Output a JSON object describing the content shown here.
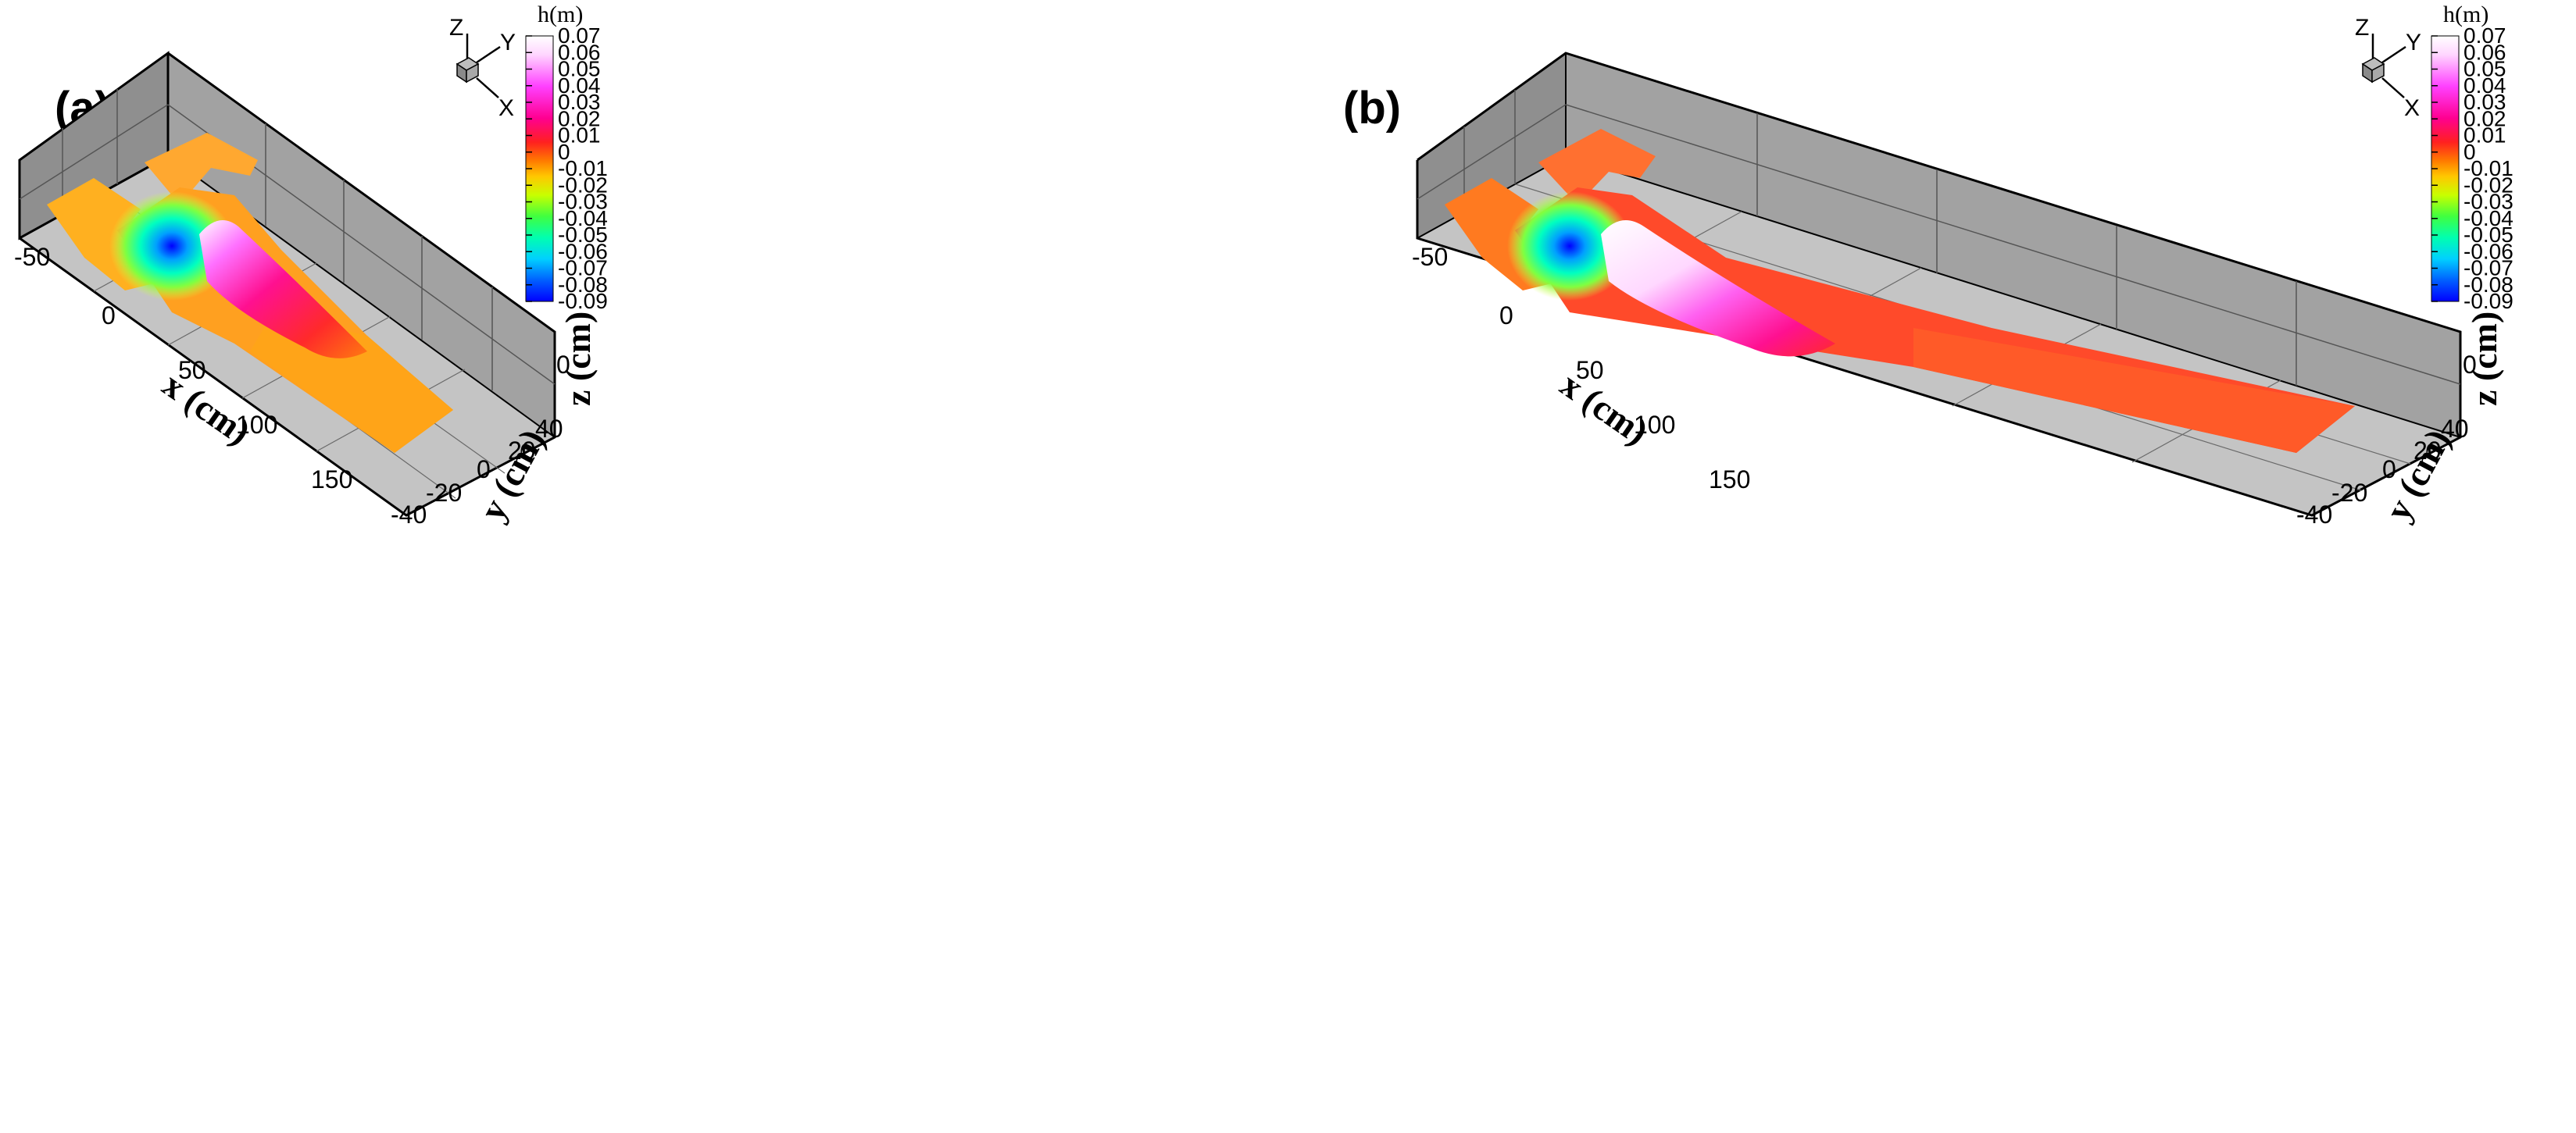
{
  "chart_data": [
    {
      "type": "surface3d",
      "panel_label": "(a)",
      "xlabel": "x (cm)",
      "ylabel": "y (cm)",
      "zlabel": "z (cm)",
      "x_ticks": [
        "-50",
        "0",
        "50",
        "100",
        "150"
      ],
      "y_ticks": [
        "40",
        "20",
        "0",
        "-20",
        "-40"
      ],
      "z_ticks": [
        "0"
      ],
      "colorbar": {
        "title": "h(m)",
        "ticks": [
          "0.07",
          "0.06",
          "0.05",
          "0.04",
          "0.03",
          "0.02",
          "0.01",
          "0",
          "-0.01",
          "-0.02",
          "-0.03",
          "-0.04",
          "-0.05",
          "-0.06",
          "-0.07",
          "-0.08",
          "-0.09"
        ],
        "range": [
          -0.09,
          0.07
        ]
      },
      "triad": [
        "Z",
        "Y",
        "X"
      ],
      "features": {
        "scour_min": -0.09,
        "deposit_max": 0.07,
        "downstream_level": 0.0
      }
    },
    {
      "type": "surface3d",
      "panel_label": "(b)",
      "xlabel": "x (cm)",
      "ylabel": "y (cm)",
      "zlabel": "z (cm)",
      "x_ticks": [
        "-50",
        "0",
        "50",
        "100",
        "150"
      ],
      "y_ticks": [
        "40",
        "20",
        "0",
        "-20",
        "-40"
      ],
      "z_ticks": [
        "0"
      ],
      "colorbar": {
        "title": "h(m)",
        "ticks": [
          "0.07",
          "0.06",
          "0.05",
          "0.04",
          "0.03",
          "0.02",
          "0.01",
          "0",
          "-0.01",
          "-0.02",
          "-0.03",
          "-0.04",
          "-0.05",
          "-0.06",
          "-0.07",
          "-0.08",
          "-0.09"
        ],
        "range": [
          -0.09,
          0.07
        ]
      },
      "triad": [
        "Z",
        "Y",
        "X"
      ],
      "features": {
        "scour_min": -0.09,
        "deposit_max": 0.07,
        "downstream_level": 0.01
      }
    }
  ],
  "colors": {
    "floor": "#c2c2c2",
    "wall": "#8f8f8f",
    "wall_light": "#a9a9a9",
    "grid": "#555555"
  }
}
